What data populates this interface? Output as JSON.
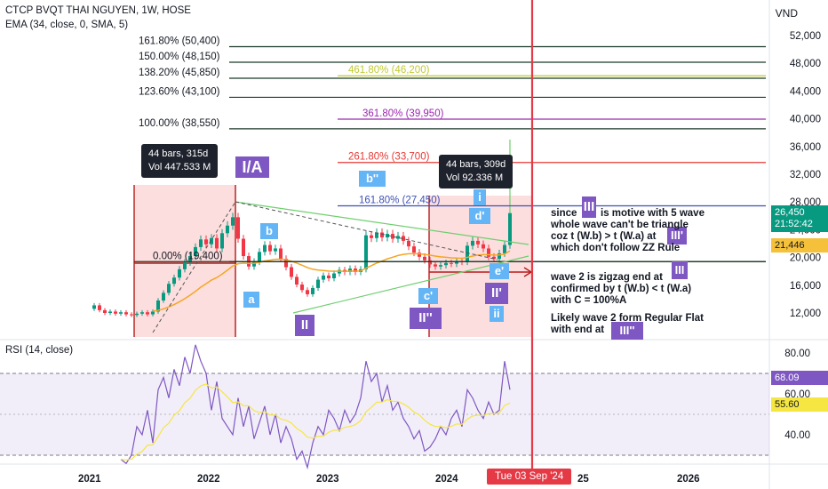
{
  "header": {
    "symbol_line": "CTCP BVQT THAI NGUYEN, 1W, HOSE",
    "ema_line": "EMA (34, close, 0, SMA, 5)",
    "currency": "VND",
    "rsi_label": "RSI (14, close)"
  },
  "chart_data": {
    "type": "line",
    "title": "CTCP BVQT THAI NGUYEN, 1W, HOSE",
    "price_axis": {
      "ticks": [
        12000,
        16000,
        20000,
        24000,
        28000,
        32000,
        36000,
        40000,
        44000,
        48000,
        52000
      ],
      "tick_labels": [
        "12,000",
        "16,000",
        "20,000",
        "24,000",
        "28,000",
        "32,000",
        "36,000",
        "40,000",
        "44,000",
        "48,000",
        "52,000"
      ]
    },
    "rsi_axis": {
      "ticks": [
        40,
        60,
        80
      ],
      "tick_labels": [
        "40.00",
        "60.00",
        "80.00"
      ],
      "band": [
        30,
        70
      ]
    },
    "x_axis": {
      "labels": [
        "2021",
        "2022",
        "2023",
        "2024",
        "25",
        "2026"
      ],
      "cursor_label": "Tue 03 Sep '24"
    },
    "series": [
      {
        "name": "EMA (34, close, 0, SMA, 5)",
        "color": "#f5a623"
      }
    ],
    "price_tags": [
      {
        "value": "26,450",
        "sub": "21:52:42",
        "color": "#089981"
      },
      {
        "value": "21,446",
        "color": "#f5c13b"
      }
    ],
    "rsi_tags": [
      {
        "value": "68.09",
        "color": "#7e57c2"
      },
      {
        "value": "55.60",
        "color": "#f5e642"
      }
    ],
    "fib_levels_left": [
      {
        "label": "161.80% (50,400)",
        "price": 50400
      },
      {
        "label": "150.00% (48,150)",
        "price": 48150
      },
      {
        "label": "138.20% (45,850)",
        "price": 45850
      },
      {
        "label": "123.60% (43,100)",
        "price": 43100
      },
      {
        "label": "100.00% (38,550)",
        "price": 38550
      },
      {
        "label": "0.00% (19,400)",
        "price": 19400
      }
    ],
    "fib_levels_right": [
      {
        "label": "461.80% (46,200)",
        "price": 46200,
        "color": "#c0ca33"
      },
      {
        "label": "361.80% (39,950)",
        "price": 39950,
        "color": "#9c27b0"
      },
      {
        "label": "261.80% (33,700)",
        "price": 33700,
        "color": "#e53935"
      },
      {
        "label": "161.80% (27,450)",
        "price": 27450,
        "color": "#3f51b5"
      }
    ],
    "measure_boxes": [
      {
        "bars": "44 bars, 315d",
        "vol": "Vol 447.533 M"
      },
      {
        "bars": "44 bars, 309d",
        "vol": "Vol 92.336 M"
      }
    ],
    "wave_labels": [
      "I/A",
      "a",
      "b",
      "II",
      "b''",
      "c'",
      "II''",
      "d'",
      "i",
      "e'",
      "II'",
      "ii",
      "III",
      "III'",
      "III"
    ]
  },
  "annotations": {
    "note1": "since",
    "note1b": "is motive with 5 wave",
    "note2": "whole wave can't be triangle",
    "note3": "coz t (W.b) > t (W.a) at",
    "note4": "which don't follow ZZ Rule",
    "note5": "wave 2 is zigzag end at",
    "note6": "confirmed by t (W.b) < t (W.a)",
    "note7": "with C = 100%A",
    "note8": "Likely wave 2 form Regular Flat",
    "note9": "with end at"
  }
}
